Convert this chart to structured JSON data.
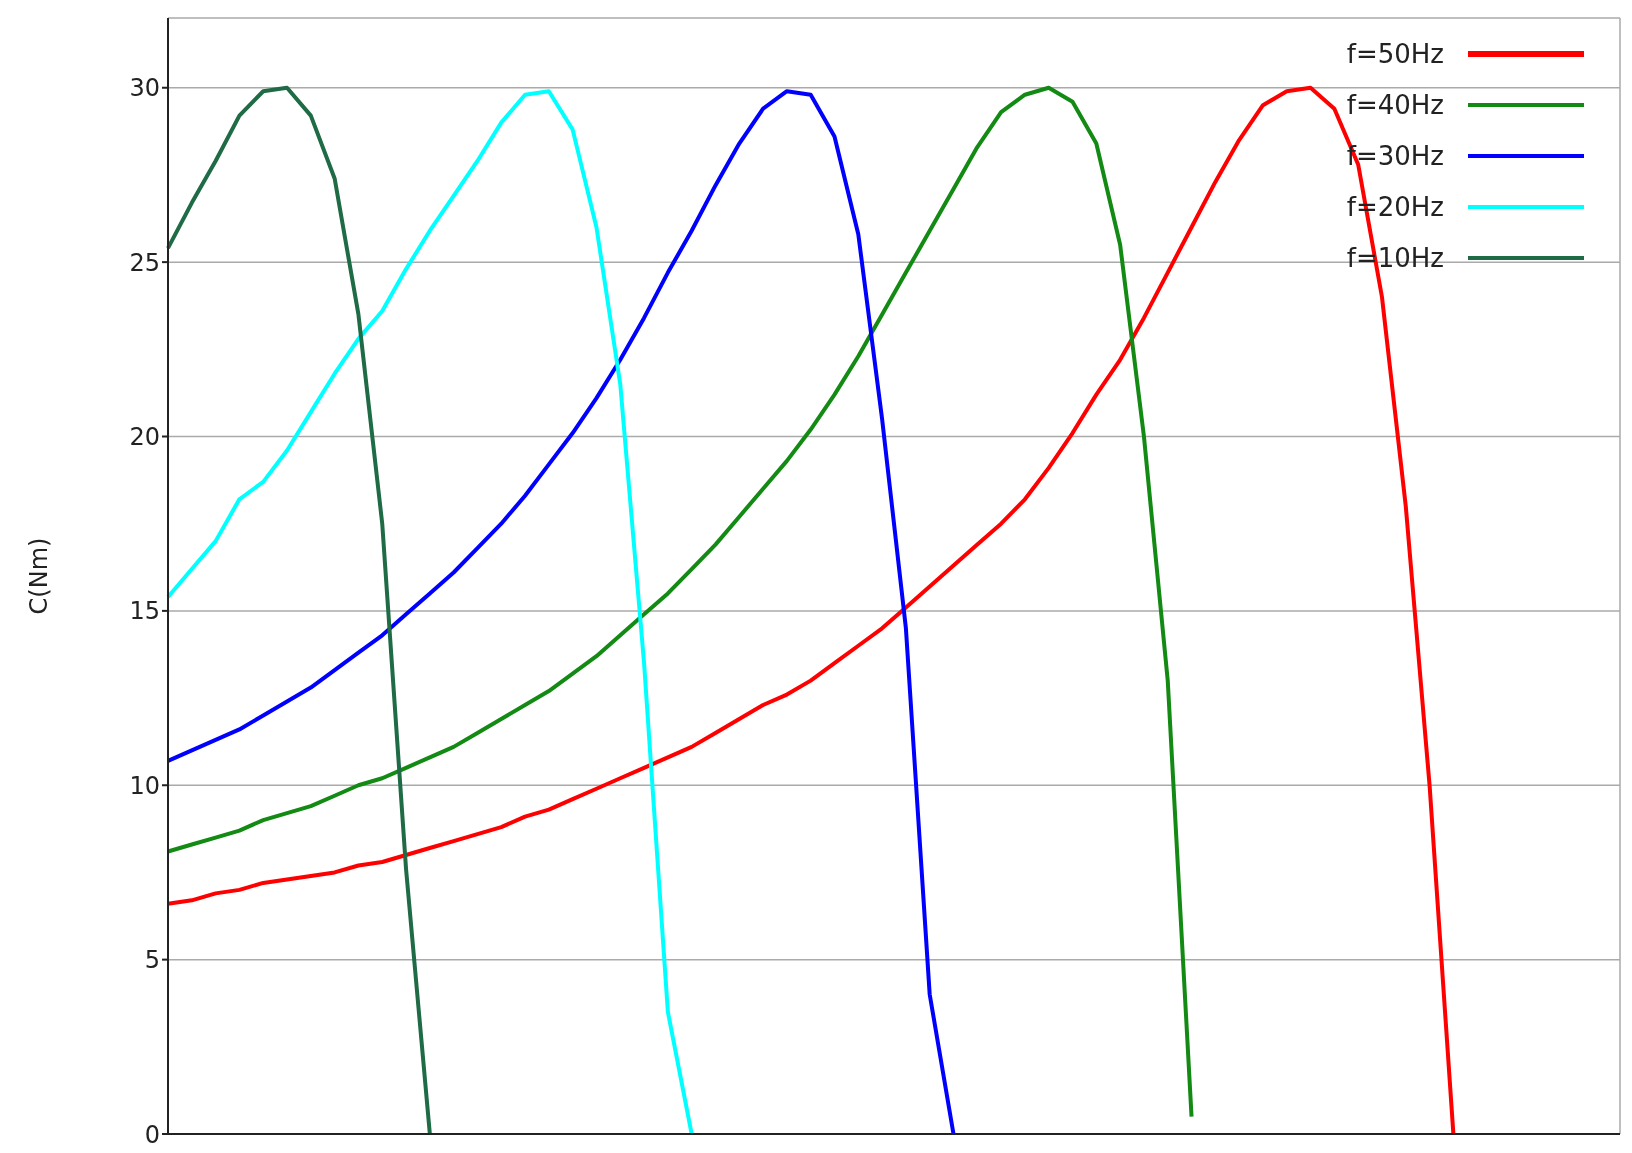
{
  "chart_data": {
    "type": "line",
    "ylabel": "C(Nm)",
    "categories": [
      null,
      null,
      null,
      null,
      null,
      null,
      null,
      null,
      null,
      null,
      null,
      null,
      null,
      null,
      null,
      null,
      null,
      null,
      null,
      null,
      null,
      null,
      null,
      null,
      null,
      null,
      null,
      null,
      null,
      null,
      null,
      null,
      null,
      null,
      null,
      null,
      null,
      null,
      null,
      null,
      null,
      null,
      null,
      null,
      null,
      null,
      null,
      null,
      null,
      null,
      null,
      null,
      null,
      null,
      null,
      null,
      null,
      null,
      null,
      null,
      null,
      null
    ],
    "series": [
      {
        "name": "f=50Hz",
        "color": "#ff0000",
        "values": [
          6.6,
          6.7,
          6.9,
          7.0,
          7.2,
          7.3,
          7.4,
          7.5,
          7.7,
          7.8,
          8.0,
          8.2,
          8.4,
          8.6,
          8.8,
          9.1,
          9.3,
          9.6,
          9.9,
          10.2,
          10.5,
          10.8,
          11.1,
          11.5,
          11.9,
          12.3,
          12.6,
          13.0,
          13.5,
          14.0,
          14.5,
          15.1,
          15.7,
          16.3,
          16.9,
          17.5,
          18.2,
          19.1,
          20.1,
          21.2,
          22.2,
          23.4,
          24.7,
          26.0,
          27.3,
          28.5,
          29.5,
          29.9,
          30.0,
          29.4,
          27.8,
          24.0,
          18.0,
          10.0,
          0,
          null,
          null,
          null,
          null,
          null,
          null,
          null
        ]
      },
      {
        "name": "f=40Hz",
        "color": "#138a13",
        "values": [
          8.1,
          8.3,
          8.5,
          8.7,
          9.0,
          9.2,
          9.4,
          9.7,
          10.0,
          10.2,
          10.5,
          10.8,
          11.1,
          11.5,
          11.9,
          12.3,
          12.7,
          13.2,
          13.7,
          14.3,
          14.9,
          15.5,
          16.2,
          16.9,
          17.7,
          18.5,
          19.3,
          20.2,
          21.2,
          22.3,
          23.5,
          24.7,
          25.9,
          27.1,
          28.3,
          29.3,
          29.8,
          30.0,
          29.6,
          28.4,
          25.5,
          20.0,
          13.0,
          0.5,
          null,
          null,
          null,
          null,
          null,
          null,
          null,
          null,
          null,
          null,
          null,
          null,
          null,
          null,
          null,
          null,
          null,
          null
        ]
      },
      {
        "name": "f=30Hz",
        "color": "#0000ff",
        "values": [
          10.7,
          11.0,
          11.3,
          11.6,
          12.0,
          12.4,
          12.8,
          13.3,
          13.8,
          14.3,
          14.9,
          15.5,
          16.1,
          16.8,
          17.5,
          18.3,
          19.2,
          20.1,
          21.1,
          22.2,
          23.4,
          24.7,
          25.9,
          27.2,
          28.4,
          29.4,
          29.9,
          29.8,
          28.6,
          25.8,
          20.5,
          14.5,
          4.0,
          0,
          null,
          null,
          null,
          null,
          null,
          null,
          null,
          null,
          null,
          null,
          null,
          null,
          null,
          null,
          null,
          null,
          null,
          null,
          null,
          null,
          null,
          null,
          null,
          null,
          null,
          null,
          null,
          null
        ]
      },
      {
        "name": "f=20Hz",
        "color": "#00ffff",
        "values": [
          15.4,
          16.2,
          17.0,
          18.2,
          18.7,
          19.6,
          20.7,
          21.8,
          22.8,
          23.6,
          24.8,
          25.9,
          26.9,
          27.9,
          29.0,
          29.8,
          29.9,
          28.8,
          26.0,
          21.5,
          13.5,
          3.5,
          0,
          null,
          null,
          null,
          null,
          null,
          null,
          null,
          null,
          null,
          null,
          null,
          null,
          null,
          null,
          null,
          null,
          null,
          null,
          null,
          null,
          null,
          null,
          null,
          null,
          null,
          null,
          null,
          null,
          null,
          null,
          null,
          null,
          null,
          null,
          null,
          null,
          null,
          null,
          null
        ]
      },
      {
        "name": "f=10Hz",
        "color": "#1e6b45",
        "values": [
          25.4,
          26.7,
          27.9,
          29.2,
          29.9,
          30.0,
          29.2,
          27.4,
          23.5,
          17.5,
          7.6,
          0,
          null,
          null,
          null,
          null,
          null,
          null,
          null,
          null,
          null,
          null,
          null,
          null,
          null,
          null,
          null,
          null,
          null,
          null,
          null,
          null,
          null,
          null,
          null,
          null,
          null,
          null,
          null,
          null,
          null,
          null,
          null,
          null,
          null,
          null,
          null,
          null,
          null,
          null,
          null,
          null,
          null,
          null,
          null,
          null,
          null,
          null,
          null,
          null,
          null,
          null
        ]
      }
    ],
    "ylim": [
      0,
      32
    ],
    "yticks": [
      0,
      5,
      10,
      15,
      20,
      25,
      30
    ],
    "grid": true,
    "legend": "top right",
    "marker": "none",
    "line_style": "solid"
  }
}
